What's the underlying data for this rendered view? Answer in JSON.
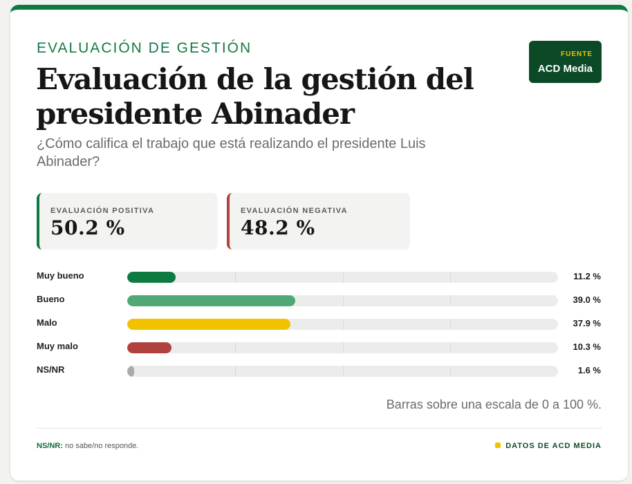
{
  "header": {
    "eyebrow": "EVALUACIÓN DE GESTIÓN",
    "title": "Evaluación de la gestión del presidente Abinader",
    "subtitle": "¿Cómo califica el trabajo que está realizando el presidente Luis Abinader?"
  },
  "source": {
    "label": "FUENTE",
    "value": "ACD Media"
  },
  "stats": {
    "positive": {
      "label": "EVALUACIÓN POSITIVA",
      "value": "50.2 %",
      "color": "#0f7a3f"
    },
    "negative": {
      "label": "EVALUACIÓN NEGATIVA",
      "value": "48.2 %",
      "color": "#b0413e"
    }
  },
  "chart_data": {
    "type": "bar",
    "orientation": "horizontal",
    "categories": [
      "Muy bueno",
      "Bueno",
      "Malo",
      "Muy malo",
      "NS/NR"
    ],
    "values": [
      11.2,
      39.0,
      37.9,
      10.3,
      1.6
    ],
    "value_labels": [
      "11.2 %",
      "39.0 %",
      "37.9 %",
      "10.3 %",
      "1.6 %"
    ],
    "colors": [
      "#0f7a3f",
      "#52a874",
      "#f2c200",
      "#b0413e",
      "#a9abaa"
    ],
    "xlim": [
      0,
      100
    ],
    "grid": true
  },
  "footer": {
    "scale_note": "Barras sobre una escala de 0 a 100 %.",
    "abbr": "NS/NR:",
    "abbr_desc": " no sabe/no responde.",
    "credit": "DATOS DE ACD MEDIA"
  }
}
